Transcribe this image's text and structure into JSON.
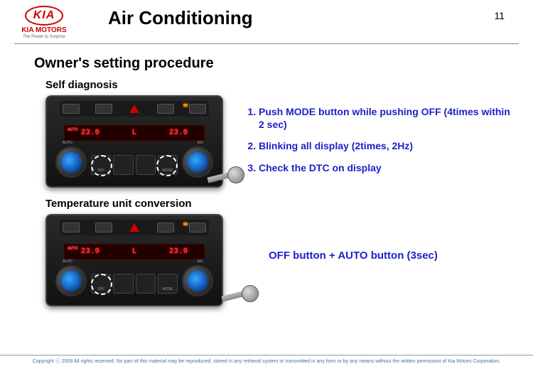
{
  "header": {
    "logo_text": "KIA",
    "logo_sub": "KIA MOTORS",
    "logo_tag": "The Power to Surprise",
    "title": "Air Conditioning",
    "page_number": "11"
  },
  "section": {
    "title": "Owner's setting procedure",
    "sub1": "Self diagnosis",
    "sub2": "Temperature unit conversion"
  },
  "panel": {
    "display_left": "23.0",
    "display_mid": "L",
    "display_right": "23.0",
    "auto_label": "AUTO",
    "knob_left_label": "AUTO",
    "knob_right_label": "A/C",
    "btn_off": "OFF",
    "btn_fan": "",
    "btn_air": "",
    "btn_mode": "MODE"
  },
  "steps": [
    "Push MODE button while pushing OFF (4times within 2 sec)",
    "Blinking all display (2times, 2Hz)",
    "Check the DTC on display"
  ],
  "conversion_text": "OFF button + AUTO button (3sec)",
  "footer": "Copyright ⓒ 2009 All rights reserved. No part of this material may be reproduced, stored in any retrieval system or transmitted in any form or by any means without the written permission of Kia Motors Corporation.",
  "colors": {
    "accent": "#2020c8",
    "kia_red": "#c00",
    "led_orange": "#f80",
    "lcd_red": "#f33"
  }
}
